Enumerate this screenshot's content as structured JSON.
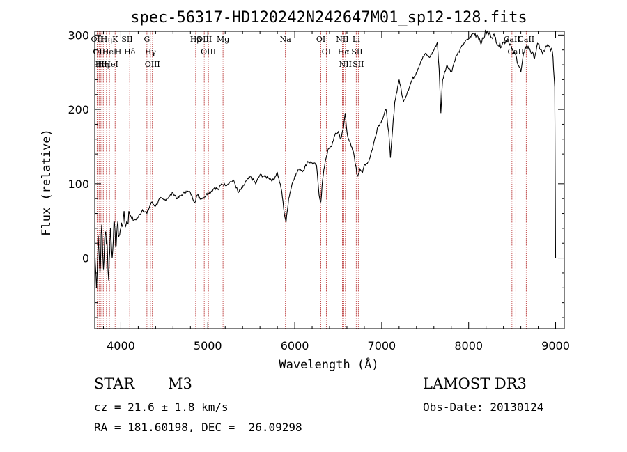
{
  "chart_data": {
    "type": "line",
    "title": "spec-56317-HD120242N242647M01_sp12-128.fits",
    "xlabel": "Wavelength (Å)",
    "ylabel": "Flux (relative)",
    "xlim": [
      3700,
      9100
    ],
    "ylim": [
      -95,
      305
    ],
    "xticks": [
      4000,
      5000,
      6000,
      7000,
      8000,
      9000
    ],
    "yticks": [
      0,
      100,
      200,
      300
    ],
    "series": [
      {
        "name": "spectrum",
        "x": [
          3700,
          3720,
          3740,
          3760,
          3780,
          3800,
          3820,
          3840,
          3860,
          3880,
          3900,
          3920,
          3940,
          3960,
          3980,
          4000,
          4030,
          4060,
          4100,
          4150,
          4200,
          4250,
          4300,
          4350,
          4400,
          4450,
          4500,
          4550,
          4600,
          4650,
          4700,
          4750,
          4800,
          4850,
          4880,
          4920,
          4960,
          5000,
          5040,
          5080,
          5120,
          5160,
          5200,
          5250,
          5300,
          5350,
          5400,
          5450,
          5500,
          5550,
          5600,
          5650,
          5700,
          5750,
          5800,
          5850,
          5880,
          5900,
          5930,
          5970,
          6000,
          6050,
          6100,
          6150,
          6200,
          6250,
          6280,
          6300,
          6320,
          6350,
          6380,
          6420,
          6460,
          6500,
          6530,
          6560,
          6580,
          6600,
          6620,
          6650,
          6680,
          6700,
          6720,
          6750,
          6780,
          6800,
          6850,
          6900,
          6950,
          7000,
          7050,
          7080,
          7100,
          7150,
          7200,
          7250,
          7300,
          7350,
          7400,
          7450,
          7500,
          7550,
          7600,
          7640,
          7660,
          7680,
          7700,
          7750,
          7800,
          7850,
          7900,
          7950,
          8000,
          8050,
          8100,
          8150,
          8200,
          8250,
          8300,
          8350,
          8400,
          8450,
          8500,
          8550,
          8600,
          8650,
          8700,
          8750,
          8800,
          8850,
          8900,
          8950,
          8970,
          8990,
          9000
        ],
        "y": [
          10,
          -40,
          30,
          -20,
          45,
          -15,
          35,
          25,
          -30,
          40,
          0,
          50,
          15,
          45,
          30,
          40,
          55,
          45,
          60,
          50,
          55,
          65,
          60,
          75,
          70,
          80,
          78,
          82,
          88,
          80,
          85,
          90,
          88,
          75,
          85,
          80,
          82,
          88,
          90,
          95,
          92,
          100,
          98,
          102,
          104,
          88,
          95,
          105,
          110,
          100,
          112,
          110,
          108,
          105,
          115,
          90,
          60,
          48,
          80,
          100,
          110,
          120,
          118,
          130,
          128,
          125,
          85,
          75,
          105,
          130,
          145,
          150,
          165,
          170,
          160,
          175,
          195,
          170,
          160,
          150,
          140,
          125,
          110,
          120,
          115,
          125,
          130,
          150,
          175,
          185,
          200,
          170,
          135,
          210,
          240,
          210,
          225,
          240,
          250,
          265,
          275,
          270,
          280,
          290,
          255,
          195,
          240,
          260,
          250,
          270,
          280,
          290,
          295,
          302,
          300,
          290,
          305,
          300,
          298,
          285,
          290,
          295,
          280,
          270,
          250,
          285,
          282,
          270,
          288,
          275,
          285,
          282,
          270,
          230,
          0
        ]
      }
    ],
    "line_annotations": [
      {
        "wavelength": 3727,
        "label": "OII"
      },
      {
        "wavelength": 3750,
        "label": "OII"
      },
      {
        "wavelength": 3771,
        "label": "Hθ"
      },
      {
        "wavelength": 3798,
        "label": "Hη"
      },
      {
        "wavelength": 3835,
        "label": "Hη"
      },
      {
        "wavelength": 3869,
        "label": "HeI"
      },
      {
        "wavelength": 3889,
        "label": "HeI"
      },
      {
        "wavelength": 3934,
        "label": "K"
      },
      {
        "wavelength": 3969,
        "label": "H"
      },
      {
        "wavelength": 4072,
        "label": "SII"
      },
      {
        "wavelength": 4102,
        "label": "Hδ"
      },
      {
        "wavelength": 4300,
        "label": "G"
      },
      {
        "wavelength": 4340,
        "label": "Hγ"
      },
      {
        "wavelength": 4363,
        "label": "OIII"
      },
      {
        "wavelength": 4861,
        "label": "Hβ"
      },
      {
        "wavelength": 4959,
        "label": "OIII"
      },
      {
        "wavelength": 5007,
        "label": "OIII"
      },
      {
        "wavelength": 5175,
        "label": "Mg"
      },
      {
        "wavelength": 5893,
        "label": "Na"
      },
      {
        "wavelength": 6300,
        "label": "OI"
      },
      {
        "wavelength": 6363,
        "label": "OI"
      },
      {
        "wavelength": 6548,
        "label": "NII"
      },
      {
        "wavelength": 6563,
        "label": "Hα"
      },
      {
        "wavelength": 6583,
        "label": "NII"
      },
      {
        "wavelength": 6707,
        "label": "Li"
      },
      {
        "wavelength": 6716,
        "label": "SII"
      },
      {
        "wavelength": 6731,
        "label": "SII"
      },
      {
        "wavelength": 8498,
        "label": "CaII"
      },
      {
        "wavelength": 8542,
        "label": "CaII"
      },
      {
        "wavelength": 8662,
        "label": "CaII"
      }
    ]
  },
  "info": {
    "object_class": "STAR",
    "subclass": "M3",
    "survey": "LAMOST DR3",
    "redshift": "cz = 21.6 ± 1.8 km/s",
    "obs_date": "Obs-Date: 20130124",
    "coords": "RA = 181.60198, DEC =  26.09298"
  }
}
